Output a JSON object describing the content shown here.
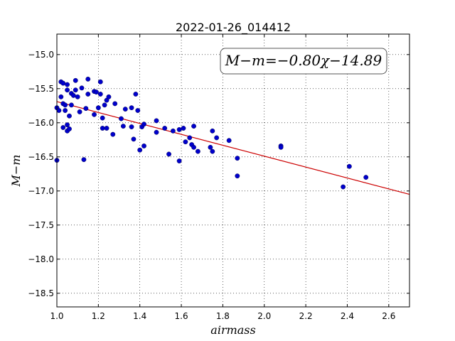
{
  "chart_data": {
    "type": "scatter",
    "title": "2022-01-26_014412",
    "xlabel": "airmass",
    "ylabel": "M−m",
    "xlim": [
      1.0,
      2.7
    ],
    "ylim": [
      -18.7,
      -14.7
    ],
    "y_inverted": true,
    "grid": true,
    "x_ticks": [
      1.0,
      1.2,
      1.4,
      1.6,
      1.8,
      2.0,
      2.2,
      2.4,
      2.6
    ],
    "x_tick_labels": [
      "1.0",
      "1.2",
      "1.4",
      "1.6",
      "1.8",
      "2.0",
      "2.2",
      "2.4",
      "2.6"
    ],
    "y_ticks": [
      -15.0,
      -15.5,
      -16.0,
      -16.5,
      -17.0,
      -17.5,
      -18.0,
      -18.5
    ],
    "y_tick_labels": [
      "−15.0",
      "−15.5",
      "−16.0",
      "−16.5",
      "−17.0",
      "−17.5",
      "−18.0",
      "−18.5"
    ],
    "annotation": "M−m=−0.80χ−14.89",
    "fit": {
      "slope": -0.8,
      "intercept": -14.89,
      "color": "#cc0000"
    },
    "point_color": "#0000cc",
    "points": [
      [
        1.0,
        -16.55
      ],
      [
        1.0,
        -15.78
      ],
      [
        1.01,
        -15.82
      ],
      [
        1.02,
        -15.4
      ],
      [
        1.02,
        -15.62
      ],
      [
        1.03,
        -15.42
      ],
      [
        1.03,
        -15.72
      ],
      [
        1.03,
        -16.07
      ],
      [
        1.04,
        -15.74
      ],
      [
        1.04,
        -15.82
      ],
      [
        1.05,
        -15.44
      ],
      [
        1.05,
        -15.52
      ],
      [
        1.05,
        -16.03
      ],
      [
        1.05,
        -16.12
      ],
      [
        1.06,
        -16.09
      ],
      [
        1.06,
        -15.9
      ],
      [
        1.07,
        -15.57
      ],
      [
        1.07,
        -15.74
      ],
      [
        1.08,
        -15.6
      ],
      [
        1.09,
        -15.38
      ],
      [
        1.09,
        -15.52
      ],
      [
        1.1,
        -15.62
      ],
      [
        1.11,
        -15.84
      ],
      [
        1.12,
        -15.49
      ],
      [
        1.13,
        -16.54
      ],
      [
        1.14,
        -15.79
      ],
      [
        1.15,
        -15.36
      ],
      [
        1.15,
        -15.58
      ],
      [
        1.18,
        -15.88
      ],
      [
        1.18,
        -15.54
      ],
      [
        1.19,
        -15.55
      ],
      [
        1.2,
        -15.78
      ],
      [
        1.21,
        -15.4
      ],
      [
        1.21,
        -15.58
      ],
      [
        1.22,
        -15.93
      ],
      [
        1.22,
        -16.08
      ],
      [
        1.23,
        -15.74
      ],
      [
        1.24,
        -16.08
      ],
      [
        1.24,
        -15.67
      ],
      [
        1.25,
        -15.62
      ],
      [
        1.27,
        -16.17
      ],
      [
        1.28,
        -15.72
      ],
      [
        1.31,
        -15.94
      ],
      [
        1.32,
        -16.05
      ],
      [
        1.33,
        -15.8
      ],
      [
        1.36,
        -15.78
      ],
      [
        1.36,
        -16.06
      ],
      [
        1.37,
        -16.24
      ],
      [
        1.38,
        -15.58
      ],
      [
        1.39,
        -15.82
      ],
      [
        1.4,
        -16.4
      ],
      [
        1.41,
        -16.06
      ],
      [
        1.42,
        -16.02
      ],
      [
        1.42,
        -16.34
      ],
      [
        1.48,
        -15.97
      ],
      [
        1.48,
        -16.14
      ],
      [
        1.52,
        -16.08
      ],
      [
        1.54,
        -16.46
      ],
      [
        1.56,
        -16.12
      ],
      [
        1.59,
        -16.1
      ],
      [
        1.59,
        -16.56
      ],
      [
        1.61,
        -16.08
      ],
      [
        1.62,
        -16.28
      ],
      [
        1.64,
        -16.22
      ],
      [
        1.65,
        -16.32
      ],
      [
        1.66,
        -16.05
      ],
      [
        1.66,
        -16.36
      ],
      [
        1.68,
        -16.42
      ],
      [
        1.74,
        -16.36
      ],
      [
        1.75,
        -16.12
      ],
      [
        1.75,
        -16.42
      ],
      [
        1.77,
        -16.22
      ],
      [
        1.83,
        -16.26
      ],
      [
        1.87,
        -16.52
      ],
      [
        1.87,
        -16.78
      ],
      [
        2.08,
        -16.34
      ],
      [
        2.08,
        -16.36
      ],
      [
        2.38,
        -16.94
      ],
      [
        2.41,
        -16.64
      ],
      [
        2.49,
        -16.8
      ]
    ]
  }
}
